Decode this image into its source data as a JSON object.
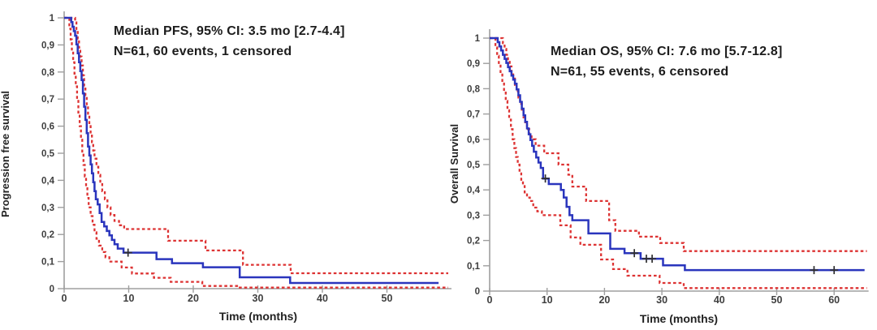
{
  "page": {
    "background": "#ffffff"
  },
  "colors": {
    "km_line": "#2a35bd",
    "ci_line": "#dd3333",
    "axis": "#9f9f9f",
    "tick_text": "#3e3e3e",
    "title_text": "#1c1c1c",
    "censor_mark": "#2f2f2f"
  },
  "chart_data": [
    {
      "type": "line",
      "subtype": "kaplan-meier",
      "title": {
        "line1": "Median PFS, 95% CI: 3.5 mo [2.7-4.4]",
        "line2": "N=61, 60 events, 1 censored"
      },
      "median_months": 3.5,
      "ci_95": [
        2.7,
        4.4
      ],
      "n": 61,
      "events": 60,
      "censored": 1,
      "xlabel": "Time (months)",
      "ylabel": "Progression free survival",
      "xlim": [
        0,
        60
      ],
      "ylim": [
        0,
        1
      ],
      "xticks": [
        0,
        10,
        20,
        30,
        40,
        50
      ],
      "ytick_labels": [
        "0",
        "0,1",
        "0,2",
        "0,3",
        "0,4",
        "0,5",
        "0,6",
        "0,7",
        "0,8",
        "0,9",
        "1"
      ],
      "grid": false,
      "legend": "none",
      "series": [
        {
          "name": "PFS KM estimate",
          "role": "km",
          "end_time": 58,
          "steps": [
            [
              1.1,
              0.984
            ],
            [
              1.3,
              0.967
            ],
            [
              1.5,
              0.951
            ],
            [
              1.7,
              0.934
            ],
            [
              1.9,
              0.902
            ],
            [
              2.1,
              0.869
            ],
            [
              2.3,
              0.836
            ],
            [
              2.5,
              0.803
            ],
            [
              2.7,
              0.77
            ],
            [
              2.9,
              0.721
            ],
            [
              3.1,
              0.672
            ],
            [
              3.3,
              0.623
            ],
            [
              3.5,
              0.574
            ],
            [
              3.7,
              0.525
            ],
            [
              3.9,
              0.492
            ],
            [
              4.1,
              0.459
            ],
            [
              4.3,
              0.426
            ],
            [
              4.5,
              0.393
            ],
            [
              4.7,
              0.36
            ],
            [
              4.9,
              0.33
            ],
            [
              5.2,
              0.311
            ],
            [
              5.5,
              0.279
            ],
            [
              5.8,
              0.246
            ],
            [
              6.2,
              0.23
            ],
            [
              6.6,
              0.213
            ],
            [
              7.0,
              0.197
            ],
            [
              7.4,
              0.18
            ],
            [
              7.8,
              0.164
            ],
            [
              8.3,
              0.148
            ],
            [
              9.2,
              0.133
            ],
            [
              14.3,
              0.109
            ],
            [
              16.7,
              0.094
            ],
            [
              21.5,
              0.079
            ],
            [
              27.2,
              0.042
            ],
            [
              35.0,
              0.021
            ]
          ]
        },
        {
          "name": "95% CI upper",
          "role": "ci_upper",
          "end_time": 59.5,
          "steps": [
            [
              1.7,
              0.983
            ],
            [
              1.9,
              0.955
            ],
            [
              2.1,
              0.923
            ],
            [
              2.3,
              0.89
            ],
            [
              2.5,
              0.857
            ],
            [
              2.7,
              0.824
            ],
            [
              2.9,
              0.787
            ],
            [
              3.1,
              0.75
            ],
            [
              3.3,
              0.713
            ],
            [
              3.5,
              0.676
            ],
            [
              3.7,
              0.64
            ],
            [
              3.9,
              0.606
            ],
            [
              4.1,
              0.573
            ],
            [
              4.3,
              0.541
            ],
            [
              4.5,
              0.51
            ],
            [
              4.7,
              0.48
            ],
            [
              5.0,
              0.45
            ],
            [
              5.3,
              0.42
            ],
            [
              5.6,
              0.39
            ],
            [
              5.9,
              0.36
            ],
            [
              6.3,
              0.33
            ],
            [
              6.7,
              0.3
            ],
            [
              7.2,
              0.272
            ],
            [
              7.8,
              0.25
            ],
            [
              8.5,
              0.234
            ],
            [
              9.3,
              0.22
            ],
            [
              16.1,
              0.177
            ],
            [
              21.9,
              0.141
            ],
            [
              27.7,
              0.088
            ],
            [
              35.1,
              0.057
            ]
          ]
        },
        {
          "name": "95% CI lower",
          "role": "ci_lower",
          "end_time": 59.5,
          "steps": [
            [
              0.8,
              0.96
            ],
            [
              1.0,
              0.92
            ],
            [
              1.2,
              0.878
            ],
            [
              1.4,
              0.836
            ],
            [
              1.6,
              0.794
            ],
            [
              1.8,
              0.747
            ],
            [
              2.0,
              0.7
            ],
            [
              2.2,
              0.65
            ],
            [
              2.4,
              0.6
            ],
            [
              2.6,
              0.55
            ],
            [
              2.8,
              0.5
            ],
            [
              3.0,
              0.457
            ],
            [
              3.2,
              0.414
            ],
            [
              3.4,
              0.371
            ],
            [
              3.6,
              0.335
            ],
            [
              3.8,
              0.3
            ],
            [
              4.1,
              0.268
            ],
            [
              4.4,
              0.236
            ],
            [
              4.7,
              0.208
            ],
            [
              5.0,
              0.184
            ],
            [
              5.4,
              0.159
            ],
            [
              5.9,
              0.135
            ],
            [
              6.4,
              0.116
            ],
            [
              7.0,
              0.1
            ],
            [
              8.9,
              0.078
            ],
            [
              10.5,
              0.056
            ],
            [
              13.9,
              0.04
            ],
            [
              16.5,
              0.025
            ],
            [
              21.4,
              0.01
            ],
            [
              27.0,
              0.004
            ]
          ]
        }
      ],
      "censor_marks": [
        [
          9.9,
          0.133
        ]
      ]
    },
    {
      "type": "line",
      "subtype": "kaplan-meier",
      "title": {
        "line1": "Median OS, 95% CI: 7.6 mo [5.7-12.8]",
        "line2": "N=61, 55 events,  6 censored"
      },
      "median_months": 7.6,
      "ci_95": [
        5.7,
        12.8
      ],
      "n": 61,
      "events": 55,
      "censored": 6,
      "xlabel": "Time (months)",
      "ylabel": "Overall Survival",
      "xlim": [
        0,
        66
      ],
      "ylim": [
        0,
        1
      ],
      "xticks": [
        0,
        10,
        20,
        30,
        40,
        50,
        60
      ],
      "ytick_labels": [
        "0",
        "0,1",
        "0,2",
        "0,3",
        "0,4",
        "0,5",
        "0,6",
        "0,7",
        "0,8",
        "0,9",
        "1"
      ],
      "grid": false,
      "legend": "none",
      "series": [
        {
          "name": "OS KM estimate",
          "role": "km",
          "end_time": 65.3,
          "steps": [
            [
              1.4,
              0.984
            ],
            [
              1.7,
              0.967
            ],
            [
              2.0,
              0.951
            ],
            [
              2.3,
              0.934
            ],
            [
              2.6,
              0.918
            ],
            [
              2.9,
              0.902
            ],
            [
              3.2,
              0.885
            ],
            [
              3.5,
              0.869
            ],
            [
              3.8,
              0.852
            ],
            [
              4.1,
              0.836
            ],
            [
              4.4,
              0.82
            ],
            [
              4.7,
              0.797
            ],
            [
              5.0,
              0.774
            ],
            [
              5.3,
              0.748
            ],
            [
              5.6,
              0.721
            ],
            [
              5.9,
              0.695
            ],
            [
              6.2,
              0.669
            ],
            [
              6.5,
              0.643
            ],
            [
              6.8,
              0.62
            ],
            [
              7.1,
              0.597
            ],
            [
              7.4,
              0.574
            ],
            [
              7.7,
              0.551
            ],
            [
              8.1,
              0.528
            ],
            [
              8.5,
              0.508
            ],
            [
              8.9,
              0.487
            ],
            [
              9.3,
              0.445
            ],
            [
              10.3,
              0.423
            ],
            [
              12.4,
              0.4
            ],
            [
              12.9,
              0.37
            ],
            [
              13.4,
              0.333
            ],
            [
              13.9,
              0.3
            ],
            [
              14.4,
              0.28
            ],
            [
              17.2,
              0.228
            ],
            [
              21.0,
              0.167
            ],
            [
              23.5,
              0.15
            ],
            [
              26.3,
              0.128
            ],
            [
              30.2,
              0.102
            ],
            [
              34.0,
              0.083
            ]
          ]
        },
        {
          "name": "95% CI upper",
          "role": "ci_upper",
          "end_time": 65.7,
          "steps": [
            [
              2.3,
              0.98
            ],
            [
              2.6,
              0.957
            ],
            [
              2.9,
              0.934
            ],
            [
              3.2,
              0.911
            ],
            [
              3.5,
              0.888
            ],
            [
              3.8,
              0.865
            ],
            [
              4.1,
              0.84
            ],
            [
              4.4,
              0.815
            ],
            [
              4.7,
              0.79
            ],
            [
              5.0,
              0.765
            ],
            [
              5.3,
              0.74
            ],
            [
              5.6,
              0.713
            ],
            [
              5.9,
              0.687
            ],
            [
              6.2,
              0.661
            ],
            [
              6.5,
              0.64
            ],
            [
              6.9,
              0.62
            ],
            [
              7.3,
              0.6
            ],
            [
              8.0,
              0.575
            ],
            [
              9.5,
              0.545
            ],
            [
              12.0,
              0.5
            ],
            [
              13.7,
              0.46
            ],
            [
              14.4,
              0.413
            ],
            [
              16.8,
              0.356
            ],
            [
              20.8,
              0.28
            ],
            [
              21.9,
              0.238
            ],
            [
              26.0,
              0.215
            ],
            [
              29.7,
              0.19
            ],
            [
              33.8,
              0.158
            ]
          ]
        },
        {
          "name": "95% CI lower",
          "role": "ci_lower",
          "end_time": 65.7,
          "steps": [
            [
              1.0,
              0.963
            ],
            [
              1.3,
              0.93
            ],
            [
              1.6,
              0.895
            ],
            [
              1.9,
              0.86
            ],
            [
              2.2,
              0.825
            ],
            [
              2.5,
              0.79
            ],
            [
              2.8,
              0.752
            ],
            [
              3.1,
              0.715
            ],
            [
              3.4,
              0.678
            ],
            [
              3.7,
              0.64
            ],
            [
              4.0,
              0.6
            ],
            [
              4.3,
              0.565
            ],
            [
              4.6,
              0.53
            ],
            [
              4.9,
              0.5
            ],
            [
              5.2,
              0.47
            ],
            [
              5.5,
              0.44
            ],
            [
              5.8,
              0.415
            ],
            [
              6.1,
              0.39
            ],
            [
              6.5,
              0.37
            ],
            [
              7.0,
              0.356
            ],
            [
              7.6,
              0.33
            ],
            [
              8.3,
              0.315
            ],
            [
              9.1,
              0.3
            ],
            [
              12.3,
              0.26
            ],
            [
              14.1,
              0.212
            ],
            [
              15.8,
              0.183
            ],
            [
              19.4,
              0.125
            ],
            [
              21.5,
              0.087
            ],
            [
              24.0,
              0.061
            ],
            [
              29.6,
              0.032
            ],
            [
              33.8,
              0.012
            ]
          ]
        }
      ],
      "censor_marks": [
        [
          9.7,
          0.445
        ],
        [
          25.2,
          0.15
        ],
        [
          27.3,
          0.128
        ],
        [
          28.3,
          0.128
        ],
        [
          56.5,
          0.083
        ],
        [
          60.0,
          0.083
        ]
      ]
    }
  ]
}
